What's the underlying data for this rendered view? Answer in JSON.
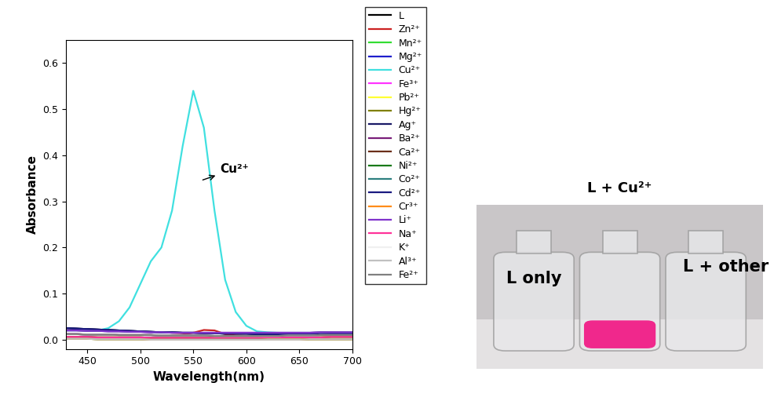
{
  "chart_data": {
    "type": "line",
    "x_label": "Wavelength(nm)",
    "y_label": "Absorbance",
    "annotation": "Cu²⁺",
    "x": [
      430,
      440,
      450,
      460,
      470,
      480,
      490,
      500,
      510,
      520,
      530,
      540,
      550,
      560,
      570,
      580,
      590,
      600,
      610,
      620,
      630,
      640,
      650,
      660,
      670,
      680,
      690,
      700
    ],
    "xlim": [
      430,
      700
    ],
    "xticks": [
      450,
      500,
      550,
      600,
      650,
      700
    ],
    "ylim": [
      -0.02,
      0.65
    ],
    "yticks": [
      0.0,
      0.1,
      0.2,
      0.3,
      0.4,
      0.5,
      0.6
    ],
    "grid": false,
    "legend": "upper left",
    "series": [
      {
        "name": "L",
        "color": "#000000",
        "values": [
          0.025,
          0.024,
          0.023,
          0.022,
          0.021,
          0.02,
          0.019,
          0.018,
          0.017,
          0.016,
          0.016,
          0.015,
          0.015,
          0.014,
          0.014,
          0.013,
          0.013,
          0.013,
          0.012,
          0.012,
          0.012,
          0.012,
          0.012,
          0.012,
          0.012,
          0.013,
          0.013,
          0.013
        ]
      },
      {
        "name": "Zn²⁺",
        "color": "#cc2222",
        "values": [
          0.012,
          0.012,
          0.011,
          0.011,
          0.011,
          0.01,
          0.01,
          0.01,
          0.01,
          0.009,
          0.01,
          0.011,
          0.015,
          0.021,
          0.02,
          0.012,
          0.009,
          0.008,
          0.008,
          0.008,
          0.008,
          0.009,
          0.009,
          0.009,
          0.01,
          0.01,
          0.01,
          0.01
        ]
      },
      {
        "name": "Mn²⁺",
        "color": "#33dd33",
        "values": [
          0.006,
          0.006,
          0.006,
          0.005,
          0.005,
          0.005,
          0.005,
          0.005,
          0.004,
          0.004,
          0.004,
          0.004,
          0.004,
          0.004,
          0.004,
          0.004,
          0.004,
          0.004,
          0.004,
          0.005,
          0.005,
          0.005,
          0.005,
          0.005,
          0.005,
          0.006,
          0.006,
          0.006
        ]
      },
      {
        "name": "Mg²⁺",
        "color": "#1f1fcc",
        "values": [
          0.012,
          0.012,
          0.011,
          0.011,
          0.011,
          0.01,
          0.01,
          0.01,
          0.01,
          0.009,
          0.009,
          0.009,
          0.009,
          0.009,
          0.008,
          0.008,
          0.008,
          0.008,
          0.008,
          0.008,
          0.008,
          0.009,
          0.009,
          0.009,
          0.01,
          0.01,
          0.01,
          0.01
        ]
      },
      {
        "name": "Cu²⁺",
        "color": "#40e0e0",
        "values": [
          0.02,
          0.02,
          0.02,
          0.02,
          0.025,
          0.04,
          0.07,
          0.12,
          0.17,
          0.2,
          0.28,
          0.42,
          0.54,
          0.46,
          0.28,
          0.13,
          0.06,
          0.03,
          0.018,
          0.016,
          0.015,
          0.015,
          0.015,
          0.015,
          0.015,
          0.015,
          0.015,
          0.015
        ]
      },
      {
        "name": "Fe³⁺",
        "color": "#ff33ff",
        "values": [
          0.02,
          0.02,
          0.019,
          0.019,
          0.018,
          0.018,
          0.017,
          0.017,
          0.016,
          0.016,
          0.015,
          0.015,
          0.015,
          0.015,
          0.015,
          0.015,
          0.015,
          0.015,
          0.015,
          0.015,
          0.015,
          0.015,
          0.015,
          0.015,
          0.016,
          0.016,
          0.016,
          0.016
        ]
      },
      {
        "name": "Pb²⁺",
        "color": "#ffff33",
        "values": [
          0.006,
          0.006,
          0.006,
          0.005,
          0.005,
          0.005,
          0.005,
          0.005,
          0.004,
          0.004,
          0.004,
          0.004,
          0.004,
          0.004,
          0.004,
          0.004,
          0.004,
          0.004,
          0.004,
          0.005,
          0.005,
          0.005,
          0.005,
          0.005,
          0.005,
          0.006,
          0.006,
          0.006
        ]
      },
      {
        "name": "Hg²⁺",
        "color": "#808000",
        "values": [
          0.002,
          0.002,
          0.002,
          0.001,
          0.001,
          0.001,
          0.001,
          0.001,
          0.0,
          0.0,
          0.0,
          0.0,
          0.0,
          0.0,
          0.0,
          0.0,
          0.0,
          0.0,
          0.0,
          0.0,
          0.0,
          0.0,
          0.0,
          0.001,
          0.001,
          0.001,
          0.001,
          0.001
        ]
      },
      {
        "name": "Ag⁺",
        "color": "#1a1a66",
        "values": [
          0.025,
          0.024,
          0.023,
          0.022,
          0.021,
          0.02,
          0.019,
          0.018,
          0.017,
          0.016,
          0.016,
          0.015,
          0.015,
          0.014,
          0.014,
          0.013,
          0.013,
          0.013,
          0.012,
          0.012,
          0.012,
          0.012,
          0.012,
          0.012,
          0.012,
          0.013,
          0.013,
          0.013
        ]
      },
      {
        "name": "Ba²⁺",
        "color": "#7a1f7a",
        "values": [
          0.012,
          0.012,
          0.011,
          0.011,
          0.011,
          0.01,
          0.01,
          0.01,
          0.01,
          0.009,
          0.009,
          0.009,
          0.009,
          0.009,
          0.008,
          0.008,
          0.008,
          0.008,
          0.008,
          0.008,
          0.008,
          0.009,
          0.009,
          0.009,
          0.01,
          0.01,
          0.01,
          0.01
        ]
      },
      {
        "name": "Ca²⁺",
        "color": "#6b2e1a",
        "values": [
          0.006,
          0.006,
          0.006,
          0.005,
          0.005,
          0.005,
          0.005,
          0.005,
          0.004,
          0.004,
          0.004,
          0.004,
          0.004,
          0.004,
          0.004,
          0.004,
          0.004,
          0.004,
          0.004,
          0.005,
          0.005,
          0.005,
          0.005,
          0.005,
          0.005,
          0.006,
          0.006,
          0.006
        ]
      },
      {
        "name": "Ni²⁺",
        "color": "#1a7a1a",
        "values": [
          0.002,
          0.002,
          0.002,
          0.001,
          0.001,
          0.001,
          0.001,
          0.001,
          0.0,
          0.0,
          0.0,
          0.0,
          0.0,
          0.0,
          0.0,
          0.0,
          0.0,
          0.0,
          0.0,
          0.0,
          0.0,
          0.0,
          0.0,
          0.001,
          0.001,
          0.001,
          0.001,
          0.001
        ]
      },
      {
        "name": "Co²⁺",
        "color": "#2e8080",
        "values": [
          0.02,
          0.02,
          0.019,
          0.019,
          0.018,
          0.018,
          0.017,
          0.017,
          0.016,
          0.016,
          0.015,
          0.015,
          0.015,
          0.015,
          0.015,
          0.015,
          0.015,
          0.015,
          0.015,
          0.015,
          0.015,
          0.015,
          0.015,
          0.015,
          0.016,
          0.016,
          0.016,
          0.016
        ]
      },
      {
        "name": "Cd²⁺",
        "color": "#1a1a80",
        "values": [
          0.025,
          0.024,
          0.023,
          0.022,
          0.021,
          0.02,
          0.019,
          0.018,
          0.017,
          0.016,
          0.016,
          0.015,
          0.015,
          0.014,
          0.014,
          0.013,
          0.013,
          0.013,
          0.012,
          0.012,
          0.012,
          0.012,
          0.012,
          0.012,
          0.012,
          0.013,
          0.013,
          0.013
        ]
      },
      {
        "name": "Cr³⁺",
        "color": "#ff8c1a",
        "values": [
          0.002,
          0.002,
          0.002,
          0.001,
          0.001,
          0.001,
          0.001,
          0.001,
          0.0,
          0.0,
          0.0,
          0.0,
          0.0,
          0.0,
          0.0,
          0.0,
          0.0,
          0.0,
          0.0,
          0.0,
          0.0,
          0.0,
          0.0,
          0.001,
          0.001,
          0.001,
          0.001,
          0.001
        ]
      },
      {
        "name": "Li⁺",
        "color": "#8033cc",
        "values": [
          0.02,
          0.02,
          0.019,
          0.019,
          0.018,
          0.018,
          0.017,
          0.017,
          0.016,
          0.016,
          0.015,
          0.015,
          0.015,
          0.015,
          0.015,
          0.015,
          0.015,
          0.015,
          0.015,
          0.015,
          0.015,
          0.015,
          0.015,
          0.015,
          0.016,
          0.016,
          0.016,
          0.016
        ]
      },
      {
        "name": "Na⁺",
        "color": "#ff3399",
        "values": [
          0.006,
          0.006,
          0.006,
          0.005,
          0.005,
          0.005,
          0.005,
          0.005,
          0.004,
          0.004,
          0.004,
          0.004,
          0.004,
          0.004,
          0.004,
          0.004,
          0.004,
          0.004,
          0.004,
          0.005,
          0.005,
          0.005,
          0.005,
          0.005,
          0.005,
          0.006,
          0.006,
          0.006
        ]
      },
      {
        "name": "K⁺",
        "color": "#f0f0f0",
        "values": [
          0.012,
          0.012,
          0.011,
          0.011,
          0.011,
          0.01,
          0.01,
          0.01,
          0.01,
          0.009,
          0.009,
          0.009,
          0.009,
          0.009,
          0.008,
          0.008,
          0.008,
          0.008,
          0.008,
          0.008,
          0.008,
          0.009,
          0.009,
          0.009,
          0.01,
          0.01,
          0.01,
          0.01
        ]
      },
      {
        "name": "Al³⁺",
        "color": "#c0c0c0",
        "values": [
          0.002,
          0.002,
          0.002,
          0.001,
          0.001,
          0.001,
          0.001,
          0.001,
          0.0,
          0.0,
          0.0,
          0.0,
          0.0,
          0.0,
          0.0,
          0.0,
          0.0,
          0.0,
          0.0,
          0.0,
          0.0,
          0.0,
          0.0,
          0.001,
          0.001,
          0.001,
          0.001,
          0.001
        ]
      },
      {
        "name": "Fe²⁺",
        "color": "#808080",
        "values": [
          0.012,
          0.012,
          0.011,
          0.011,
          0.011,
          0.01,
          0.01,
          0.01,
          0.01,
          0.009,
          0.009,
          0.009,
          0.009,
          0.009,
          0.008,
          0.008,
          0.008,
          0.008,
          0.008,
          0.008,
          0.008,
          0.009,
          0.009,
          0.009,
          0.01,
          0.01,
          0.01,
          0.01
        ]
      }
    ]
  },
  "photo": {
    "top_label": "L + Cu²⁺",
    "left_label": "L only",
    "right_label": "L + other"
  }
}
